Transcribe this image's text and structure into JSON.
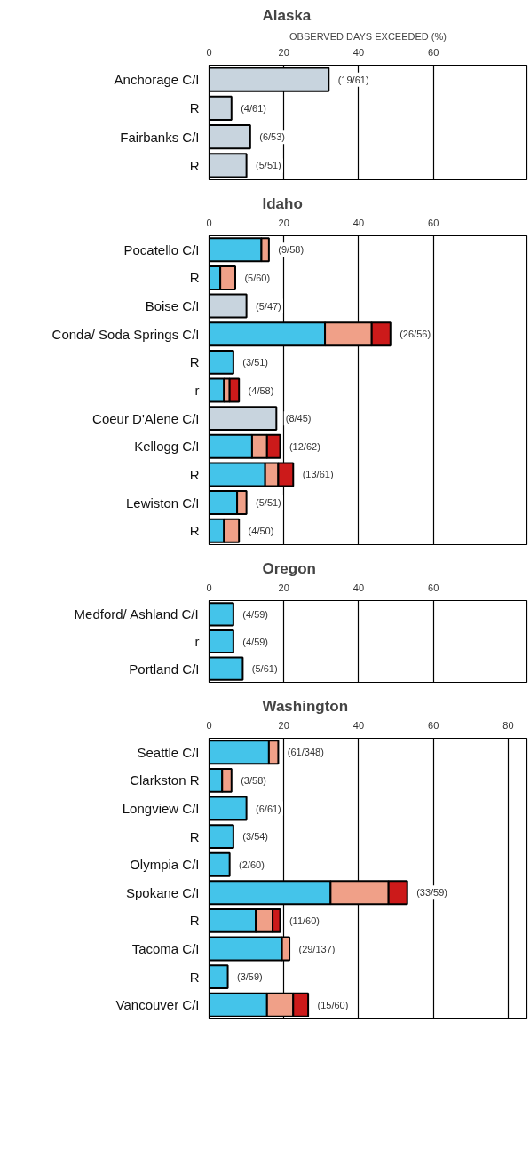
{
  "chart_data": [
    {
      "type": "bar",
      "orientation": "horizontal",
      "stacked": true,
      "title": "Alaska",
      "xlabel": "OBSERVED DAYS EXCEEDED (%)",
      "xlim": [
        0,
        85
      ],
      "xticks": [
        0,
        20,
        40,
        60
      ],
      "grid": "x",
      "categories": [
        "Anchorage C/I",
        "R",
        "Fairbanks C/I",
        "R"
      ],
      "series": [
        {
          "color": "#c8d4de",
          "values": [
            32,
            6,
            11,
            10
          ]
        }
      ],
      "value_labels": [
        "(19/61)",
        "(4/61)",
        "(6/53)",
        "(5/51)"
      ]
    },
    {
      "type": "bar",
      "orientation": "horizontal",
      "stacked": true,
      "title": "Idaho",
      "xlim": [
        0,
        85
      ],
      "xticks": [
        0,
        20,
        40,
        60
      ],
      "grid": "x",
      "categories": [
        "Pocatello C/I",
        "R",
        "Boise C/I",
        "Conda/ Soda Springs C/I",
        "R",
        "r",
        "Coeur D'Alene C/I",
        "Kellogg C/I",
        "R",
        "Lewiston C/I",
        "R"
      ],
      "series": [
        {
          "color": "#c8d4de",
          "values": [
            null,
            null,
            10,
            null,
            null,
            null,
            18,
            null,
            null,
            null,
            null
          ]
        },
        {
          "color": "#44c4ea",
          "values": [
            14,
            3,
            null,
            31,
            6.5,
            4,
            null,
            11.5,
            15,
            7.5,
            4
          ]
        },
        {
          "color": "#f0a088",
          "values": [
            2,
            4,
            null,
            12.5,
            null,
            1.5,
            null,
            4,
            3.5,
            2.5,
            4
          ]
        },
        {
          "color": "#cc1a1a",
          "values": [
            null,
            null,
            null,
            5,
            null,
            2.5,
            null,
            3.5,
            4,
            null,
            null
          ]
        }
      ],
      "value_labels": [
        "(9/58)",
        "(5/60)",
        "(5/47)",
        "(26/56)",
        "(3/51)",
        "(4/58)",
        "(8/45)",
        "(12/62)",
        "(13/61)",
        "(5/51)",
        "(4/50)"
      ]
    },
    {
      "type": "bar",
      "orientation": "horizontal",
      "stacked": true,
      "title": "Oregon",
      "xlim": [
        0,
        85
      ],
      "xticks": [
        0,
        20,
        40,
        60
      ],
      "grid": "x",
      "categories": [
        "Medford/ Ashland C/I",
        "r",
        "Portland C/I"
      ],
      "series": [
        {
          "color": "#44c4ea",
          "values": [
            6.5,
            6.5,
            9
          ]
        }
      ],
      "value_labels": [
        "(4/59)",
        "(4/59)",
        "(5/61)"
      ]
    },
    {
      "type": "bar",
      "orientation": "horizontal",
      "stacked": true,
      "title": "Washington",
      "xlim": [
        0,
        85
      ],
      "xticks": [
        0,
        20,
        40,
        60,
        80
      ],
      "grid": "x",
      "categories": [
        "Seattle C/I",
        "Clarkston R",
        "Longview C/I",
        "R",
        "Olympia C/I",
        "Spokane C/I",
        "R",
        "Tacoma C/I",
        "R",
        "Vancouver C/I"
      ],
      "series": [
        {
          "color": "#44c4ea",
          "values": [
            16,
            3.5,
            10,
            6.5,
            5.5,
            32.5,
            12.5,
            19.5,
            5,
            15.5
          ]
        },
        {
          "color": "#f0a088",
          "values": [
            2.5,
            2.5,
            null,
            null,
            null,
            15.5,
            4.5,
            2,
            null,
            7
          ]
        },
        {
          "color": "#cc1a1a",
          "values": [
            null,
            null,
            null,
            null,
            null,
            5,
            2,
            null,
            null,
            4
          ]
        }
      ],
      "value_labels": [
        "(61/348)",
        "(3/58)",
        "(6/61)",
        "(3/54)",
        "(2/60)",
        "(33/59)",
        "(11/60)",
        "(29/137)",
        "(3/59)",
        "(15/60)"
      ]
    }
  ]
}
